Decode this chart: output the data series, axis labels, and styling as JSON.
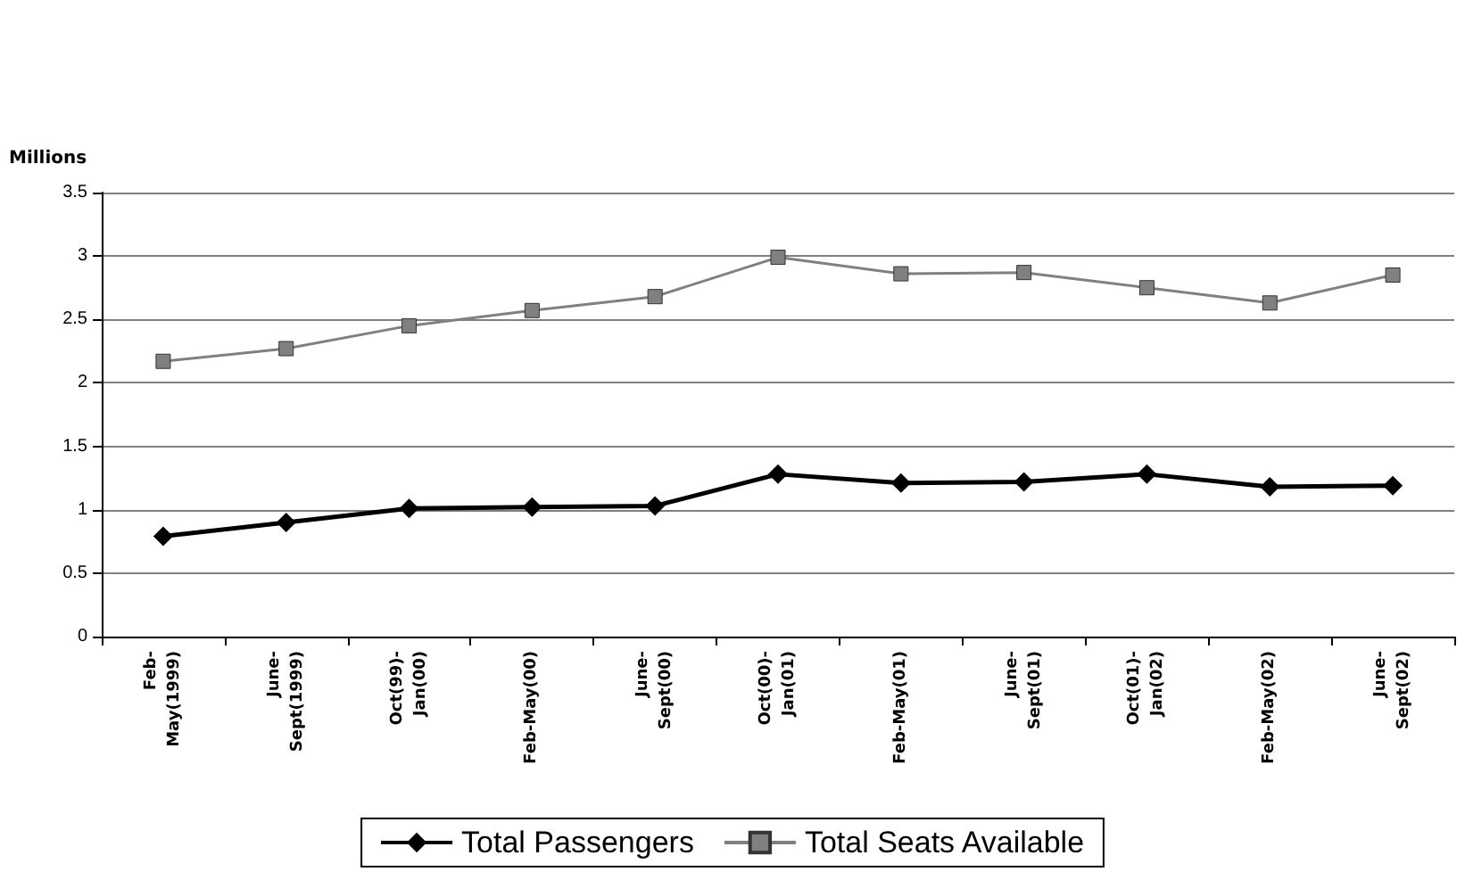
{
  "chart_data": {
    "type": "line",
    "ylabel": "Millions",
    "categories": [
      "Feb-\nMay(1999)",
      "June-\nSept(1999)",
      "Oct(99)-\nJan(00)",
      "Feb-May(00)",
      "June-\nSept(00)",
      "Oct(00)-\nJan(01)",
      "Feb-May(01)",
      "June-\nSept(01)",
      "Oct(01)-\nJan(02)",
      "Feb-May(02)",
      "June-\nSept(02)"
    ],
    "series": [
      {
        "name": "Total Passengers",
        "color": "#000000",
        "marker": "diamond",
        "values": [
          0.79,
          0.9,
          1.01,
          1.02,
          1.03,
          1.28,
          1.21,
          1.22,
          1.28,
          1.18,
          1.19
        ]
      },
      {
        "name": "Total Seats Available",
        "color": "#808080",
        "marker": "square",
        "values": [
          2.17,
          2.27,
          2.45,
          2.57,
          2.68,
          2.99,
          2.86,
          2.87,
          2.75,
          2.63,
          2.85
        ]
      }
    ],
    "ylim": [
      0,
      3.5
    ],
    "yticks": [
      0,
      0.5,
      1,
      1.5,
      2,
      2.5,
      3,
      3.5
    ],
    "grid": "y",
    "legend": "bottom"
  }
}
